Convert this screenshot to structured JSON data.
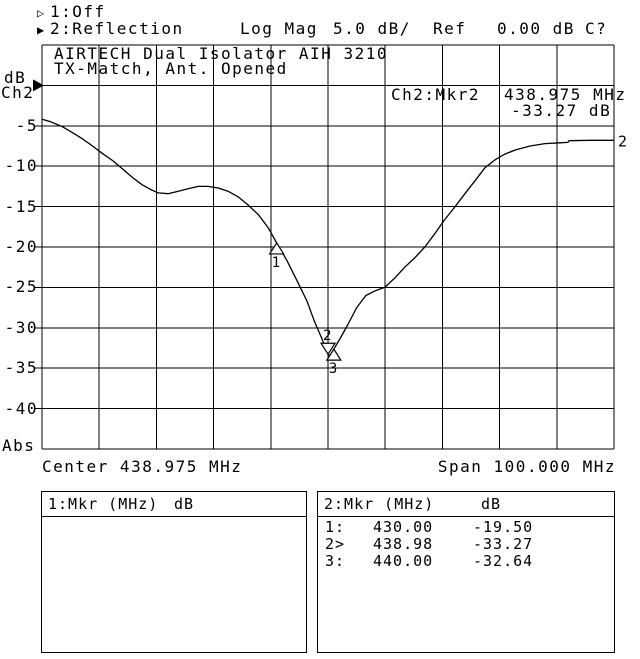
{
  "header": {
    "line1": {
      "marker": "▷",
      "text": "1:Off"
    },
    "line2": {
      "marker": "▶",
      "channel": "2:Reflection",
      "format": "Log Mag",
      "scale": "5.0 dB/",
      "ref_label": "Ref",
      "ref_value": "0.00 dB",
      "cal": "C?"
    }
  },
  "title_line1": "AIRTECH Dual Isolator AIH 3210",
  "title_line2": "TX-Match, Ant. Opened",
  "readout": {
    "channel": "Ch2:Mkr2",
    "freq": "438.975 MHz",
    "value": "-33.27 dB"
  },
  "left_axis": {
    "unit": "dB",
    "channel": "Ch2",
    "mode": "Abs"
  },
  "bottom_axis": {
    "center": "Center 438.975 MHz",
    "span": "Span 100.000 MHz"
  },
  "marker_table": {
    "left": {
      "header": "1:Mkr (MHz)",
      "unit": "dB",
      "rows": []
    },
    "right": {
      "header": "2:Mkr (MHz)",
      "unit": "dB",
      "rows": [
        {
          "label": "1:",
          "mhz": "430.00",
          "db": "-19.50"
        },
        {
          "label": "2>",
          "mhz": "438.98",
          "db": "-33.27"
        },
        {
          "label": "3:",
          "mhz": "440.00",
          "db": "-32.64"
        }
      ]
    }
  },
  "chart_data": {
    "type": "line",
    "title": "AIRTECH Dual Isolator AIH 3210",
    "subtitle": "TX-Match, Ant. Opened",
    "x_axis": {
      "center_mhz": 438.975,
      "span_mhz": 100.0,
      "min_mhz": 388.975,
      "max_mhz": 488.975,
      "divisions": 10,
      "grid": true
    },
    "y_axis": {
      "unit": "dB",
      "scale_db_per_div": 5.0,
      "ref_db": 0.0,
      "top_db": 5,
      "bottom_db": -45,
      "divisions": 10,
      "tick_labels": [
        -5,
        -10,
        -15,
        -20,
        -25,
        -30,
        -35,
        -40
      ],
      "mode": "Abs"
    },
    "series": [
      {
        "name": "2",
        "points": [
          [
            389.0,
            -4.2
          ],
          [
            390.5,
            -4.5
          ],
          [
            392.5,
            -5.1
          ],
          [
            394.2,
            -5.8
          ],
          [
            396.0,
            -6.6
          ],
          [
            397.8,
            -7.5
          ],
          [
            399.5,
            -8.4
          ],
          [
            401.3,
            -9.3
          ],
          [
            403.0,
            -10.3
          ],
          [
            404.8,
            -11.4
          ],
          [
            406.5,
            -12.3
          ],
          [
            408.0,
            -12.9
          ],
          [
            409.3,
            -13.3
          ],
          [
            411.0,
            -13.4
          ],
          [
            412.8,
            -13.1
          ],
          [
            414.5,
            -12.8
          ],
          [
            416.3,
            -12.5
          ],
          [
            418.0,
            -12.5
          ],
          [
            419.8,
            -12.7
          ],
          [
            421.5,
            -13.1
          ],
          [
            423.3,
            -13.8
          ],
          [
            425.0,
            -14.8
          ],
          [
            426.8,
            -16.0
          ],
          [
            428.5,
            -17.6
          ],
          [
            430.0,
            -19.5
          ],
          [
            431.8,
            -21.7
          ],
          [
            433.5,
            -24.1
          ],
          [
            435.3,
            -26.7
          ],
          [
            436.6,
            -29.2
          ],
          [
            437.7,
            -31.0
          ],
          [
            438.5,
            -32.4
          ],
          [
            438.98,
            -33.27
          ],
          [
            439.4,
            -33.5
          ],
          [
            440.0,
            -32.64
          ],
          [
            441.2,
            -31.2
          ],
          [
            442.6,
            -29.4
          ],
          [
            444.0,
            -27.5
          ],
          [
            445.6,
            -26.0
          ],
          [
            447.3,
            -25.4
          ],
          [
            448.9,
            -25.0
          ],
          [
            450.7,
            -23.8
          ],
          [
            452.4,
            -22.5
          ],
          [
            454.2,
            -21.3
          ],
          [
            455.9,
            -20.0
          ],
          [
            457.7,
            -18.3
          ],
          [
            459.4,
            -16.6
          ],
          [
            461.2,
            -15.0
          ],
          [
            462.9,
            -13.4
          ],
          [
            464.7,
            -11.8
          ],
          [
            466.4,
            -10.2
          ],
          [
            468.2,
            -9.2
          ],
          [
            469.9,
            -8.5
          ],
          [
            471.7,
            -8.0
          ],
          [
            474.3,
            -7.5
          ],
          [
            476.9,
            -7.2
          ],
          [
            479.5,
            -7.1
          ],
          [
            480.9,
            -7.05
          ],
          [
            481.1,
            -6.85
          ],
          [
            484.8,
            -6.8
          ],
          [
            489.0,
            -6.8
          ]
        ]
      }
    ],
    "markers": [
      {
        "n": "1",
        "mhz": 430.0,
        "db": -19.5,
        "dir": "up"
      },
      {
        "n": "2",
        "mhz": 438.98,
        "db": -33.27,
        "dir": "down"
      },
      {
        "n": "3",
        "mhz": 440.0,
        "db": -32.64,
        "dir": "up"
      }
    ],
    "legend": "none"
  }
}
